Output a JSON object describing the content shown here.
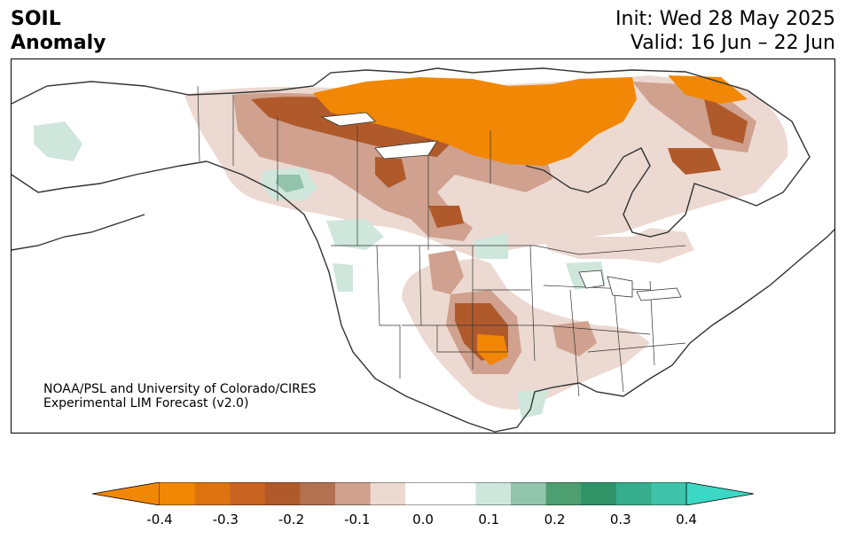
{
  "title": {
    "variable": "SOIL",
    "subtitle": "Anomaly",
    "init": "Init: Wed 28 May 2025",
    "valid": "Valid: 16 Jun – 22 Jun"
  },
  "credit": {
    "line1": "NOAA/PSL and University of Colorado/CIRES",
    "line2": "Experimental LIM Forecast (v2.0)"
  },
  "colorbar": {
    "levels": [
      "-0.4",
      "-0.3",
      "-0.2",
      "-0.1",
      "0.0",
      "0.1",
      "0.2",
      "0.3",
      "0.4"
    ],
    "colors": [
      "#f28705",
      "#de740f",
      "#c96320",
      "#b05a2c",
      "#b47152",
      "#cfa18e",
      "#ecd9d1",
      "#ffffff",
      "#ffffff",
      "#cfe6dc",
      "#92c4ab",
      "#4d9e70",
      "#319469",
      "#36ad8c",
      "#3ec3a8"
    ],
    "under_color": "#f28705",
    "over_color": "#3dd8c5"
  },
  "colors": {
    "land_border": "#333333",
    "frame": "#000000"
  }
}
